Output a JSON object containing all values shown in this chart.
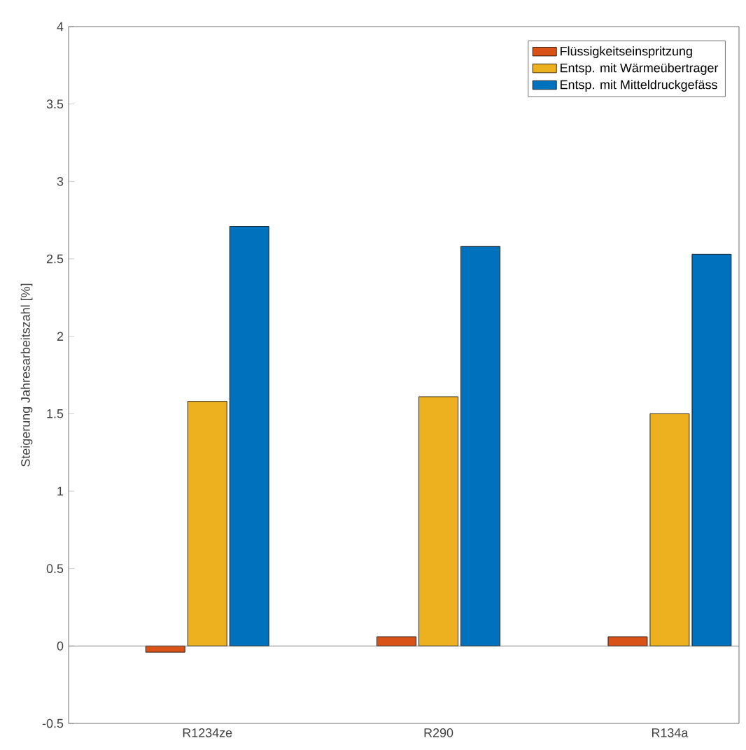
{
  "chart_data": {
    "type": "bar",
    "ylabel": "Steigerung Jahresarbeitszahl [%]",
    "categories": [
      "R1234ze",
      "R290",
      "R134a"
    ],
    "series": [
      {
        "name": "Flüssigkeitseinspritzung",
        "color": "#d95319",
        "values": [
          -0.04,
          0.06,
          0.06
        ]
      },
      {
        "name": "Entsp. mit Wärmeübertrager",
        "color": "#edb120",
        "values": [
          1.58,
          1.61,
          1.5
        ]
      },
      {
        "name": "Entsp. mit Mitteldruckgefäss",
        "color": "#0072bd",
        "values": [
          2.71,
          2.58,
          2.53
        ]
      }
    ],
    "ylim": [
      -0.5,
      4
    ],
    "yticks": [
      -0.5,
      0,
      0.5,
      1,
      1.5,
      2,
      2.5,
      3,
      3.5,
      4
    ],
    "ref_lines": [
      {
        "axis": "y",
        "value": 0,
        "color": "#666666"
      }
    ],
    "grid": false,
    "legend": "top right"
  }
}
